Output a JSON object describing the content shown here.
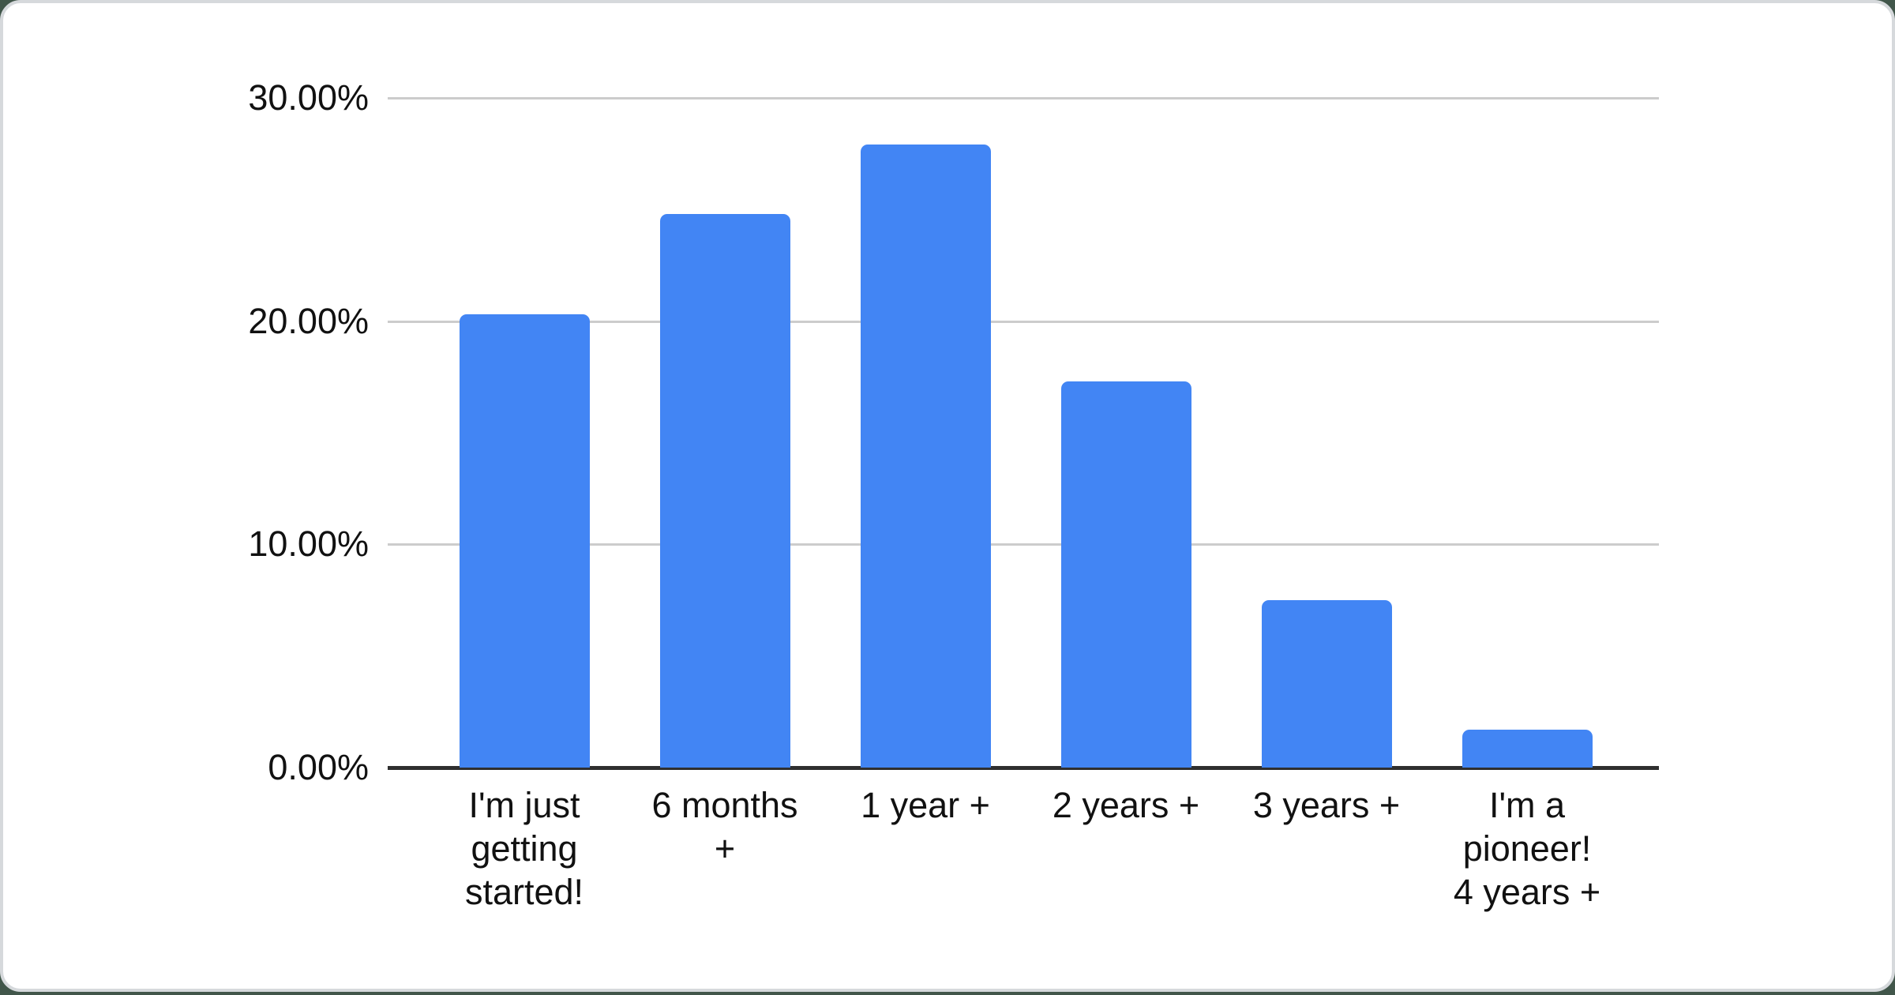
{
  "chart_data": {
    "type": "bar",
    "categories": [
      "I'm just getting started!",
      "6 months +",
      "1 year +",
      "2 years +",
      "3 years +",
      "I'm a pioneer! 4 years +"
    ],
    "values": [
      20.3,
      24.8,
      27.9,
      17.3,
      7.5,
      1.7
    ],
    "x_tick_display": [
      "I'm just\ngetting\nstarted!",
      "6 months\n+",
      "1 year +",
      "2 years +",
      "3 years +",
      "I'm a\npioneer!\n4 years +"
    ],
    "y_ticks": [
      0,
      10,
      20,
      30
    ],
    "y_tick_labels": [
      "0.00%",
      "10.00%",
      "20.00%",
      "30.00%"
    ],
    "ylim": [
      0,
      30
    ],
    "grid": "horizontal-only",
    "legend": "none",
    "bar_color": "#4285f4"
  },
  "colors": {
    "bar": "#4285f4",
    "gridline": "#cccccc",
    "axis_line": "#2f2f2f",
    "text": "#111111",
    "card_background": "#ffffff",
    "card_border": "#d6d9dc",
    "page_background": "#41564a"
  }
}
